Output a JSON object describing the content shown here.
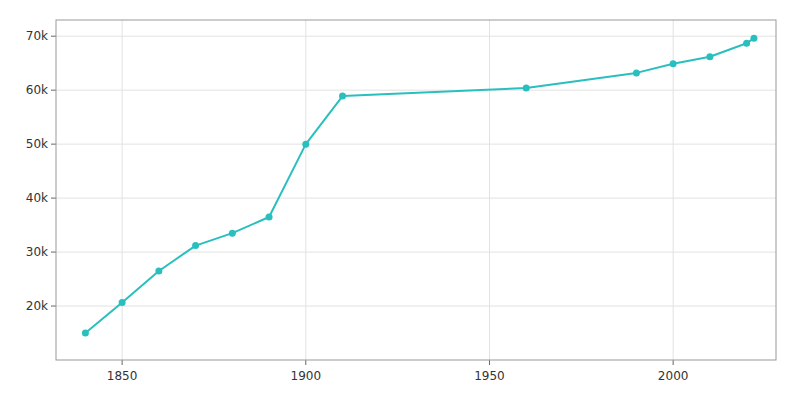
{
  "chart_data": {
    "type": "line",
    "x": [
      1840,
      1850,
      1860,
      1870,
      1880,
      1890,
      1900,
      1910,
      1960,
      1990,
      2000,
      2010,
      2020,
      2022
    ],
    "values": [
      15000,
      20650,
      26500,
      31200,
      33500,
      36500,
      50000,
      58900,
      60400,
      63200,
      64900,
      66200,
      68700,
      69600
    ],
    "color": "#2ABFBF",
    "marker": "circle",
    "xlim": [
      1832,
      2028
    ],
    "ylim": [
      10000,
      73000
    ],
    "xticks": [
      1850,
      1900,
      1950,
      2000
    ],
    "yticks": [
      {
        "value": 20000,
        "label": "20k"
      },
      {
        "value": 30000,
        "label": "30k"
      },
      {
        "value": 40000,
        "label": "40k"
      },
      {
        "value": 50000,
        "label": "50k"
      },
      {
        "value": 60000,
        "label": "60k"
      },
      {
        "value": 70000,
        "label": "70k"
      }
    ],
    "grid": true
  }
}
